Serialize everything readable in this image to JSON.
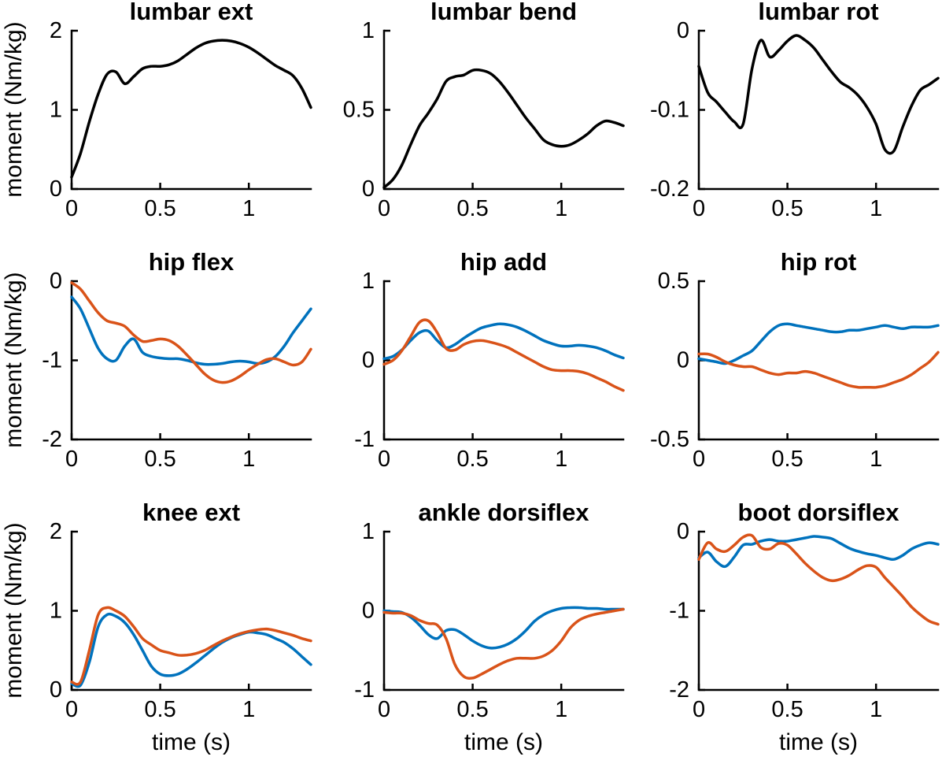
{
  "figure": {
    "shared_ylabel": "moment (Nm/kg)",
    "shared_xlabel": "time (s)"
  },
  "colors": {
    "black": "#000000",
    "blue": "#0072BD",
    "orange": "#D95319",
    "axis": "#000000",
    "background": "#ffffff"
  },
  "chart_data": [
    {
      "type": "line",
      "title": "lumbar ext",
      "ylabel": "moment (Nm/kg)",
      "xlabel": "",
      "xlim": [
        0,
        1.35
      ],
      "ylim": [
        0,
        2
      ],
      "xtick_values": [
        0,
        0.5,
        1
      ],
      "xtick_labels": [
        "0",
        "0.5",
        "1"
      ],
      "ytick_values": [
        0,
        1,
        2
      ],
      "ytick_labels": [
        "0",
        "1",
        "2"
      ],
      "grid": false,
      "legend": "none",
      "x": [
        0,
        0.05,
        0.1,
        0.15,
        0.2,
        0.25,
        0.3,
        0.35,
        0.4,
        0.45,
        0.5,
        0.55,
        0.6,
        0.65,
        0.7,
        0.75,
        0.8,
        0.85,
        0.9,
        0.95,
        1,
        1.05,
        1.1,
        1.15,
        1.2,
        1.25,
        1.3,
        1.35
      ],
      "series": [
        {
          "name": "black",
          "color": "#000000",
          "values": [
            0.15,
            0.45,
            0.85,
            1.2,
            1.45,
            1.48,
            1.33,
            1.42,
            1.52,
            1.55,
            1.55,
            1.57,
            1.62,
            1.7,
            1.78,
            1.84,
            1.87,
            1.88,
            1.87,
            1.84,
            1.79,
            1.72,
            1.64,
            1.56,
            1.5,
            1.43,
            1.27,
            1.03
          ]
        }
      ]
    },
    {
      "type": "line",
      "title": "lumbar bend",
      "ylabel": "",
      "xlabel": "",
      "xlim": [
        0,
        1.35
      ],
      "ylim": [
        0,
        1
      ],
      "xtick_values": [
        0,
        0.5,
        1
      ],
      "xtick_labels": [
        "0",
        "0.5",
        "1"
      ],
      "ytick_values": [
        0,
        0.5,
        1
      ],
      "ytick_labels": [
        "0",
        "0.5",
        "1"
      ],
      "grid": false,
      "legend": "none",
      "x": [
        0,
        0.05,
        0.1,
        0.15,
        0.2,
        0.25,
        0.3,
        0.35,
        0.4,
        0.45,
        0.5,
        0.55,
        0.6,
        0.65,
        0.7,
        0.75,
        0.8,
        0.85,
        0.9,
        0.95,
        1,
        1.05,
        1.1,
        1.15,
        1.2,
        1.25,
        1.3,
        1.35
      ],
      "series": [
        {
          "name": "black",
          "color": "#000000",
          "values": [
            0.01,
            0.06,
            0.15,
            0.28,
            0.4,
            0.48,
            0.57,
            0.68,
            0.71,
            0.72,
            0.75,
            0.75,
            0.73,
            0.68,
            0.61,
            0.53,
            0.45,
            0.38,
            0.31,
            0.28,
            0.27,
            0.28,
            0.31,
            0.35,
            0.4,
            0.43,
            0.42,
            0.4
          ]
        }
      ]
    },
    {
      "type": "line",
      "title": "lumbar rot",
      "ylabel": "",
      "xlabel": "",
      "xlim": [
        0,
        1.35
      ],
      "ylim": [
        -0.2,
        0
      ],
      "xtick_values": [
        0,
        0.5,
        1
      ],
      "xtick_labels": [
        "0",
        "0.5",
        "1"
      ],
      "ytick_values": [
        -0.2,
        -0.1,
        0
      ],
      "ytick_labels": [
        "-0.2",
        "-0.1",
        "0"
      ],
      "grid": false,
      "legend": "none",
      "x": [
        0,
        0.05,
        0.1,
        0.15,
        0.2,
        0.25,
        0.3,
        0.35,
        0.4,
        0.45,
        0.5,
        0.55,
        0.6,
        0.65,
        0.7,
        0.75,
        0.8,
        0.85,
        0.9,
        0.95,
        1,
        1.05,
        1.1,
        1.15,
        1.2,
        1.25,
        1.3,
        1.35
      ],
      "series": [
        {
          "name": "black",
          "color": "#000000",
          "values": [
            -0.045,
            -0.078,
            -0.09,
            -0.103,
            -0.115,
            -0.118,
            -0.048,
            -0.012,
            -0.033,
            -0.025,
            -0.013,
            -0.006,
            -0.012,
            -0.022,
            -0.037,
            -0.052,
            -0.065,
            -0.072,
            -0.082,
            -0.097,
            -0.118,
            -0.15,
            -0.152,
            -0.122,
            -0.095,
            -0.075,
            -0.068,
            -0.06
          ]
        }
      ]
    },
    {
      "type": "line",
      "title": "hip flex",
      "ylabel": "moment (Nm/kg)",
      "xlabel": "",
      "xlim": [
        0,
        1.35
      ],
      "ylim": [
        -2,
        0
      ],
      "xtick_values": [
        0,
        0.5,
        1
      ],
      "xtick_labels": [
        "0",
        "0.5",
        "1"
      ],
      "ytick_values": [
        -2,
        -1,
        0
      ],
      "ytick_labels": [
        "-2",
        "-1",
        "0"
      ],
      "grid": false,
      "legend": "none",
      "x": [
        0,
        0.05,
        0.1,
        0.15,
        0.2,
        0.25,
        0.3,
        0.35,
        0.4,
        0.45,
        0.5,
        0.55,
        0.6,
        0.65,
        0.7,
        0.75,
        0.8,
        0.85,
        0.9,
        0.95,
        1,
        1.05,
        1.1,
        1.15,
        1.2,
        1.25,
        1.3,
        1.35
      ],
      "series": [
        {
          "name": "blue",
          "color": "#0072BD",
          "values": [
            -0.2,
            -0.35,
            -0.6,
            -0.85,
            -0.98,
            -1.0,
            -0.82,
            -0.73,
            -0.9,
            -0.95,
            -0.97,
            -0.98,
            -0.98,
            -1.0,
            -1.03,
            -1.05,
            -1.05,
            -1.04,
            -1.02,
            -1.01,
            -1.02,
            -1.04,
            -1.02,
            -0.95,
            -0.82,
            -0.65,
            -0.5,
            -0.35
          ]
        },
        {
          "name": "orange",
          "color": "#D95319",
          "values": [
            -0.02,
            -0.1,
            -0.25,
            -0.4,
            -0.5,
            -0.53,
            -0.57,
            -0.68,
            -0.76,
            -0.75,
            -0.73,
            -0.75,
            -0.82,
            -0.93,
            -1.05,
            -1.17,
            -1.25,
            -1.28,
            -1.26,
            -1.2,
            -1.12,
            -1.05,
            -0.99,
            -0.98,
            -1.02,
            -1.06,
            -1.02,
            -0.86
          ]
        }
      ]
    },
    {
      "type": "line",
      "title": "hip add",
      "ylabel": "",
      "xlabel": "",
      "xlim": [
        0,
        1.35
      ],
      "ylim": [
        -1,
        1
      ],
      "xtick_values": [
        0,
        0.5,
        1
      ],
      "xtick_labels": [
        "0",
        "0.5",
        "1"
      ],
      "ytick_values": [
        -1,
        0,
        1
      ],
      "ytick_labels": [
        "-1",
        "0",
        "1"
      ],
      "grid": false,
      "legend": "none",
      "x": [
        0,
        0.05,
        0.1,
        0.15,
        0.2,
        0.25,
        0.3,
        0.35,
        0.4,
        0.45,
        0.5,
        0.55,
        0.6,
        0.65,
        0.7,
        0.75,
        0.8,
        0.85,
        0.9,
        0.95,
        1,
        1.05,
        1.1,
        1.15,
        1.2,
        1.25,
        1.3,
        1.35
      ],
      "series": [
        {
          "name": "blue",
          "color": "#0072BD",
          "values": [
            0.02,
            0.05,
            0.13,
            0.25,
            0.35,
            0.37,
            0.25,
            0.16,
            0.2,
            0.28,
            0.35,
            0.41,
            0.44,
            0.46,
            0.45,
            0.42,
            0.37,
            0.31,
            0.25,
            0.21,
            0.18,
            0.18,
            0.19,
            0.18,
            0.16,
            0.12,
            0.07,
            0.03
          ]
        },
        {
          "name": "orange",
          "color": "#D95319",
          "values": [
            -0.05,
            0.0,
            0.12,
            0.3,
            0.48,
            0.5,
            0.35,
            0.15,
            0.13,
            0.2,
            0.24,
            0.25,
            0.23,
            0.2,
            0.16,
            0.1,
            0.04,
            -0.02,
            -0.08,
            -0.12,
            -0.13,
            -0.13,
            -0.14,
            -0.17,
            -0.22,
            -0.27,
            -0.33,
            -0.38
          ]
        }
      ]
    },
    {
      "type": "line",
      "title": "hip rot",
      "ylabel": "",
      "xlabel": "",
      "xlim": [
        0,
        1.35
      ],
      "ylim": [
        -0.5,
        0.5
      ],
      "xtick_values": [
        0,
        0.5,
        1
      ],
      "xtick_labels": [
        "0",
        "0.5",
        "1"
      ],
      "ytick_values": [
        -0.5,
        0,
        0.5
      ],
      "ytick_labels": [
        "-0.5",
        "0",
        "0.5"
      ],
      "grid": false,
      "legend": "none",
      "x": [
        0,
        0.05,
        0.1,
        0.15,
        0.2,
        0.25,
        0.3,
        0.35,
        0.4,
        0.45,
        0.5,
        0.55,
        0.6,
        0.65,
        0.7,
        0.75,
        0.8,
        0.85,
        0.9,
        0.95,
        1,
        1.05,
        1.1,
        1.15,
        1.2,
        1.25,
        1.3,
        1.35
      ],
      "series": [
        {
          "name": "blue",
          "color": "#0072BD",
          "values": [
            0.01,
            0.0,
            -0.01,
            -0.02,
            0.0,
            0.03,
            0.06,
            0.12,
            0.18,
            0.22,
            0.23,
            0.22,
            0.21,
            0.2,
            0.19,
            0.18,
            0.18,
            0.19,
            0.19,
            0.2,
            0.21,
            0.22,
            0.21,
            0.2,
            0.21,
            0.21,
            0.21,
            0.22
          ]
        },
        {
          "name": "orange",
          "color": "#D95319",
          "values": [
            0.04,
            0.04,
            0.02,
            -0.01,
            -0.03,
            -0.04,
            -0.04,
            -0.06,
            -0.08,
            -0.09,
            -0.08,
            -0.08,
            -0.07,
            -0.08,
            -0.1,
            -0.12,
            -0.14,
            -0.16,
            -0.17,
            -0.17,
            -0.17,
            -0.16,
            -0.14,
            -0.12,
            -0.09,
            -0.05,
            -0.01,
            0.05
          ]
        }
      ]
    },
    {
      "type": "line",
      "title": "knee ext",
      "ylabel": "moment (Nm/kg)",
      "xlabel": "time (s)",
      "xlim": [
        0,
        1.35
      ],
      "ylim": [
        0,
        2
      ],
      "xtick_values": [
        0,
        0.5,
        1
      ],
      "xtick_labels": [
        "0",
        "0.5",
        "1"
      ],
      "ytick_values": [
        0,
        1,
        2
      ],
      "ytick_labels": [
        "0",
        "1",
        "2"
      ],
      "grid": false,
      "legend": "none",
      "x": [
        0,
        0.05,
        0.1,
        0.15,
        0.2,
        0.25,
        0.3,
        0.35,
        0.4,
        0.45,
        0.5,
        0.55,
        0.6,
        0.65,
        0.7,
        0.75,
        0.8,
        0.85,
        0.9,
        0.95,
        1,
        1.05,
        1.1,
        1.15,
        1.2,
        1.25,
        1.3,
        1.35
      ],
      "series": [
        {
          "name": "blue",
          "color": "#0072BD",
          "values": [
            0.08,
            0.06,
            0.35,
            0.8,
            0.95,
            0.93,
            0.85,
            0.7,
            0.5,
            0.3,
            0.2,
            0.18,
            0.2,
            0.26,
            0.34,
            0.43,
            0.52,
            0.6,
            0.66,
            0.7,
            0.73,
            0.72,
            0.7,
            0.65,
            0.6,
            0.52,
            0.42,
            0.32
          ]
        },
        {
          "name": "orange",
          "color": "#D95319",
          "values": [
            0.1,
            0.1,
            0.5,
            0.95,
            1.04,
            1.0,
            0.93,
            0.8,
            0.65,
            0.57,
            0.5,
            0.47,
            0.44,
            0.44,
            0.46,
            0.5,
            0.56,
            0.62,
            0.67,
            0.71,
            0.74,
            0.76,
            0.77,
            0.75,
            0.72,
            0.69,
            0.65,
            0.62
          ]
        }
      ]
    },
    {
      "type": "line",
      "title": "ankle dorsiflex",
      "ylabel": "",
      "xlabel": "time (s)",
      "xlim": [
        0,
        1.35
      ],
      "ylim": [
        -1,
        1
      ],
      "xtick_values": [
        0,
        0.5,
        1
      ],
      "xtick_labels": [
        "0",
        "0.5",
        "1"
      ],
      "ytick_values": [
        -1,
        0,
        1
      ],
      "ytick_labels": [
        "-1",
        "0",
        "1"
      ],
      "grid": false,
      "legend": "none",
      "x": [
        0,
        0.05,
        0.1,
        0.15,
        0.2,
        0.25,
        0.3,
        0.35,
        0.4,
        0.45,
        0.5,
        0.55,
        0.6,
        0.65,
        0.7,
        0.75,
        0.8,
        0.85,
        0.9,
        0.95,
        1,
        1.05,
        1.1,
        1.15,
        1.2,
        1.25,
        1.3,
        1.35
      ],
      "series": [
        {
          "name": "blue",
          "color": "#0072BD",
          "values": [
            0.0,
            -0.01,
            -0.02,
            -0.08,
            -0.18,
            -0.3,
            -0.35,
            -0.25,
            -0.24,
            -0.3,
            -0.38,
            -0.44,
            -0.47,
            -0.46,
            -0.42,
            -0.35,
            -0.25,
            -0.13,
            -0.05,
            0.0,
            0.03,
            0.04,
            0.04,
            0.03,
            0.03,
            0.02,
            0.02,
            0.02
          ]
        },
        {
          "name": "orange",
          "color": "#D95319",
          "values": [
            -0.02,
            -0.03,
            -0.03,
            -0.06,
            -0.12,
            -0.16,
            -0.18,
            -0.35,
            -0.68,
            -0.83,
            -0.85,
            -0.8,
            -0.74,
            -0.68,
            -0.63,
            -0.6,
            -0.6,
            -0.6,
            -0.57,
            -0.5,
            -0.38,
            -0.22,
            -0.12,
            -0.07,
            -0.04,
            -0.02,
            0.0,
            0.02
          ]
        }
      ]
    },
    {
      "type": "line",
      "title": "boot dorsiflex",
      "ylabel": "",
      "xlabel": "time (s)",
      "xlim": [
        0,
        1.35
      ],
      "ylim": [
        -2,
        0
      ],
      "xtick_values": [
        0,
        0.5,
        1
      ],
      "xtick_labels": [
        "0",
        "0.5",
        "1"
      ],
      "ytick_values": [
        -2,
        -1,
        0
      ],
      "ytick_labels": [
        "-2",
        "-1",
        "0"
      ],
      "grid": false,
      "legend": "none",
      "x": [
        0,
        0.05,
        0.1,
        0.15,
        0.2,
        0.25,
        0.3,
        0.35,
        0.4,
        0.45,
        0.5,
        0.55,
        0.6,
        0.65,
        0.7,
        0.75,
        0.8,
        0.85,
        0.9,
        0.95,
        1,
        1.05,
        1.1,
        1.15,
        1.2,
        1.25,
        1.3,
        1.35
      ],
      "series": [
        {
          "name": "blue",
          "color": "#0072BD",
          "values": [
            -0.33,
            -0.26,
            -0.38,
            -0.44,
            -0.32,
            -0.17,
            -0.16,
            -0.12,
            -0.1,
            -0.12,
            -0.12,
            -0.1,
            -0.08,
            -0.06,
            -0.07,
            -0.09,
            -0.15,
            -0.21,
            -0.25,
            -0.28,
            -0.3,
            -0.33,
            -0.35,
            -0.3,
            -0.22,
            -0.17,
            -0.14,
            -0.16
          ]
        },
        {
          "name": "orange",
          "color": "#D95319",
          "values": [
            -0.35,
            -0.14,
            -0.22,
            -0.25,
            -0.17,
            -0.07,
            -0.05,
            -0.2,
            -0.22,
            -0.15,
            -0.17,
            -0.28,
            -0.4,
            -0.5,
            -0.58,
            -0.62,
            -0.6,
            -0.55,
            -0.48,
            -0.43,
            -0.45,
            -0.58,
            -0.7,
            -0.82,
            -0.95,
            -1.05,
            -1.13,
            -1.17
          ]
        }
      ]
    }
  ]
}
